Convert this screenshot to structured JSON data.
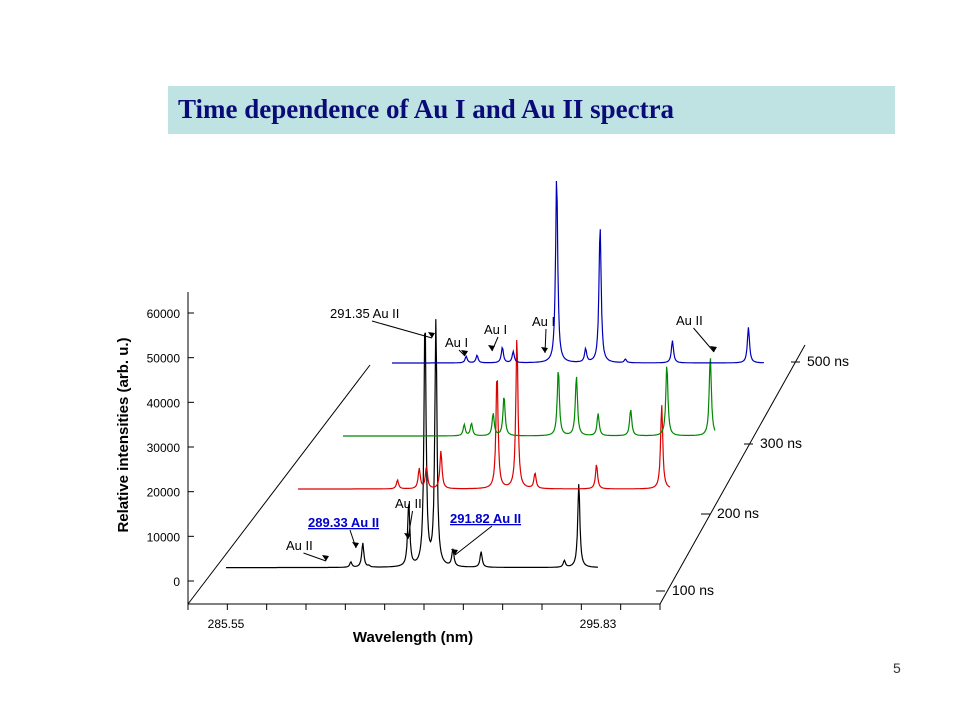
{
  "slide": {
    "title": "Time  dependence of  Au I and Au II spectra",
    "page_number": "5"
  },
  "chart_data": {
    "type": "line",
    "style": "3d-waterfall",
    "title": "",
    "xlabel": "Wavelength (nm)",
    "ylabel": "Relative intensities (arb. u.)",
    "x_range": [
      285.55,
      295.83
    ],
    "x_tick_labels": [
      "285.55",
      "295.83"
    ],
    "y_range": [
      0,
      65000
    ],
    "y_ticks": [
      0,
      10000,
      20000,
      30000,
      40000,
      50000,
      60000
    ],
    "y_tick_labels": [
      "0",
      "10000",
      "20000",
      "30000",
      "40000",
      "50000",
      "60000"
    ],
    "series": [
      {
        "name": "100 ns",
        "color": "#000000",
        "baseline": 3000,
        "peaks": [
          [
            289.33,
            8500
          ],
          [
            289.5,
            3300
          ],
          [
            289.0,
            4200
          ],
          [
            290.6,
            17500
          ],
          [
            291.05,
            59000
          ],
          [
            291.35,
            58000
          ],
          [
            291.82,
            6800
          ],
          [
            292.6,
            6500
          ],
          [
            294.9,
            4500
          ],
          [
            295.3,
            22000
          ]
        ]
      },
      {
        "name": "200 ns",
        "color": "#dd0000",
        "baseline": 20000,
        "peaks": [
          [
            288.3,
            22000
          ],
          [
            288.9,
            24500
          ],
          [
            289.1,
            25000
          ],
          [
            289.5,
            28500
          ],
          [
            291.05,
            46000
          ],
          [
            291.6,
            54000
          ],
          [
            292.1,
            23500
          ],
          [
            293.8,
            25500
          ],
          [
            295.6,
            39000
          ]
        ]
      },
      {
        "name": "300 ns",
        "color": "#008800",
        "baseline": 33000,
        "peaks": [
          [
            288.9,
            35500
          ],
          [
            289.1,
            35800
          ],
          [
            289.7,
            38000
          ],
          [
            290.0,
            42000
          ],
          [
            291.5,
            48000
          ],
          [
            292.0,
            46500
          ],
          [
            292.6,
            38000
          ],
          [
            293.5,
            39000
          ],
          [
            294.5,
            49000
          ],
          [
            295.7,
            51000
          ]
        ]
      },
      {
        "name": "500 ns",
        "color": "#0000bb",
        "baseline": 50000,
        "peaks": [
          [
            287.6,
            51500
          ],
          [
            287.9,
            51700
          ],
          [
            288.6,
            53500
          ],
          [
            288.9,
            52500
          ],
          [
            290.1,
            92000
          ],
          [
            290.9,
            53000
          ],
          [
            291.3,
            81000
          ],
          [
            292.0,
            50800
          ],
          [
            293.3,
            55000
          ],
          [
            295.4,
            58000
          ]
        ]
      }
    ],
    "annotations": [
      {
        "text": "291.35 Au II",
        "series": "100 ns",
        "x": 291.35
      },
      {
        "text": "Au II",
        "series": "100 ns",
        "x": 289.0
      },
      {
        "text": "289.33 Au II",
        "series": "100 ns",
        "x": 289.33,
        "color": "#0000cc"
      },
      {
        "text": "Au II",
        "series": "100 ns",
        "x": 290.6
      },
      {
        "text": "291.82 Au II",
        "series": "100 ns",
        "x": 291.82,
        "color": "#0000cc"
      },
      {
        "text": "Au I",
        "series": "500 ns",
        "x": 287.7
      },
      {
        "text": "Au I",
        "series": "500 ns",
        "x": 288.6
      },
      {
        "text": "Au I",
        "series": "500 ns",
        "x": 290.1
      },
      {
        "text": "Au II",
        "series": "500 ns",
        "x": 295.4
      }
    ],
    "grid": false
  }
}
